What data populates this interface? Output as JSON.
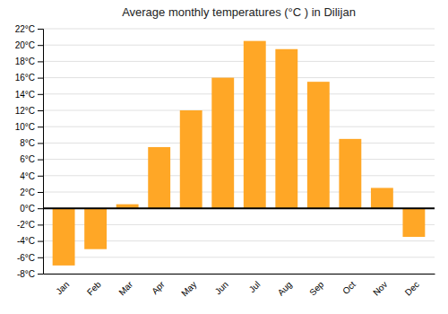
{
  "chart_data": {
    "type": "bar",
    "title": "Average monthly temperatures (°C ) in Dilijan",
    "categories": [
      "Jan",
      "Feb",
      "Mar",
      "Apr",
      "May",
      "Jun",
      "Jul",
      "Aug",
      "Sep",
      "Oct",
      "Nov",
      "Dec"
    ],
    "values": [
      -7.0,
      -5.0,
      0.5,
      7.5,
      12.0,
      16.0,
      20.5,
      19.5,
      15.5,
      8.5,
      2.5,
      -3.5
    ],
    "color": "#FFA726",
    "ylim": [
      -8,
      22
    ],
    "yticks": [
      {
        "value": -8,
        "label": "-8°C"
      },
      {
        "value": -6,
        "label": "-6°C"
      },
      {
        "value": -4,
        "label": "-4°C"
      },
      {
        "value": -2,
        "label": "-2°C"
      },
      {
        "value": 0,
        "label": "0°C"
      },
      {
        "value": 2,
        "label": "2°C"
      },
      {
        "value": 4,
        "label": "4°C"
      },
      {
        "value": 6,
        "label": "6°C"
      },
      {
        "value": 8,
        "label": "8°C"
      },
      {
        "value": 10,
        "label": "10°C"
      },
      {
        "value": 12,
        "label": "12°C"
      },
      {
        "value": 14,
        "label": "14°C"
      },
      {
        "value": 16,
        "label": "16°C"
      },
      {
        "value": 18,
        "label": "18°C"
      },
      {
        "value": 20,
        "label": "20°C"
      },
      {
        "value": 22,
        "label": "22°C"
      }
    ],
    "grid": true
  }
}
